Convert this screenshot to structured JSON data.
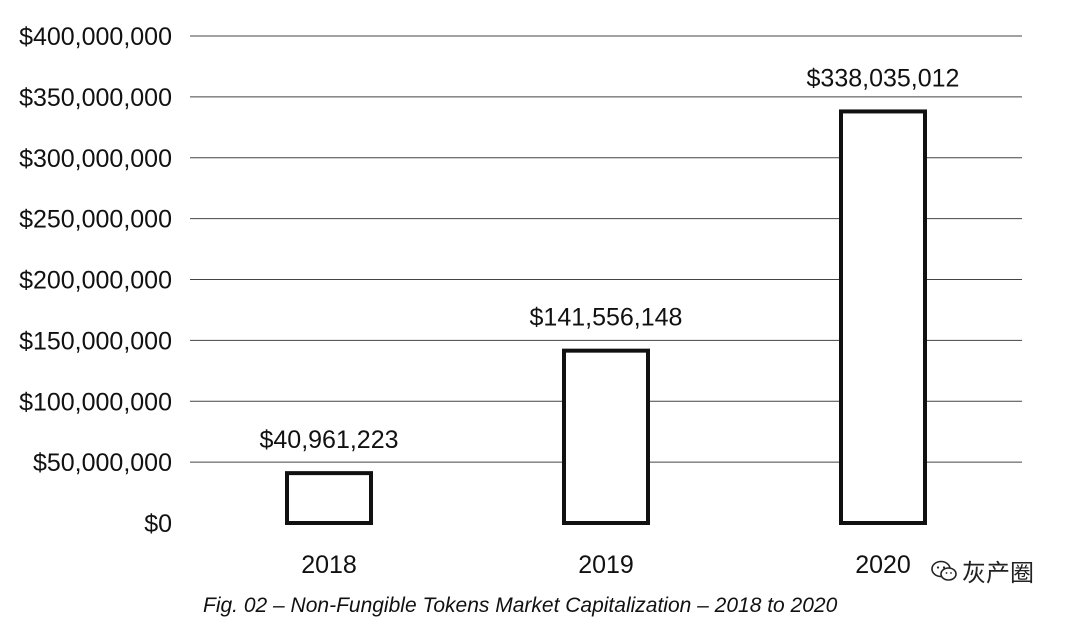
{
  "chart_data": {
    "type": "bar",
    "title": "",
    "xlabel": "",
    "ylabel": "",
    "categories": [
      "2018",
      "2019",
      "2020"
    ],
    "values": [
      40961223,
      141556148,
      338035012
    ],
    "value_labels": [
      "$40,961,223",
      "$141,556,148",
      "$338,035,012"
    ],
    "ylim": [
      0,
      400000000
    ],
    "y_ticks": [
      0,
      50000000,
      100000000,
      150000000,
      200000000,
      250000000,
      300000000,
      350000000,
      400000000
    ],
    "y_tick_labels": [
      "$0",
      "$50,000,000",
      "$100,000,000",
      "$150,000,000",
      "$200,000,000",
      "$250,000,000",
      "$300,000,000",
      "$350,000,000",
      "$400,000,000"
    ],
    "grid": true,
    "legend": "none",
    "bar_fill": "#ffffff",
    "bar_stroke": "#111111"
  },
  "caption": "Fig. 02 – Non-Fungible Tokens Market Capitalization – 2018 to 2020",
  "watermark": {
    "text": "灰产圈",
    "icon": "wechat-icon"
  }
}
